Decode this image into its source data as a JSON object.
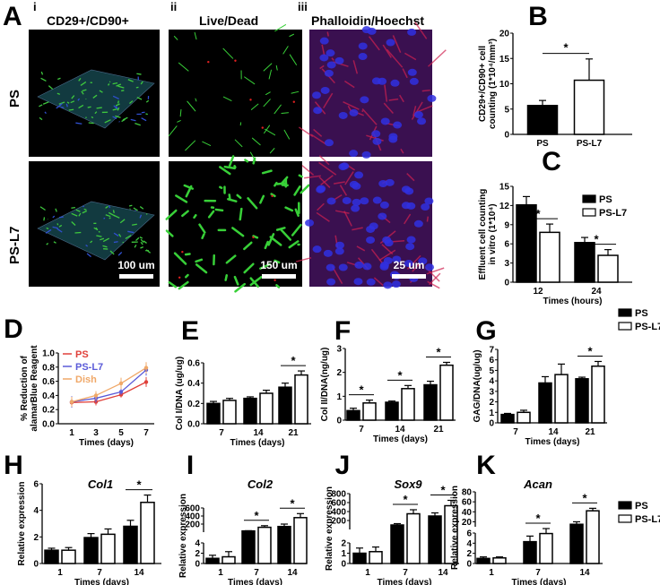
{
  "panel_a": {
    "letter": "A",
    "columns": [
      {
        "numeral": "i",
        "title": "CD29+/CD90+",
        "scale_bar": "100 um"
      },
      {
        "numeral": "ii",
        "title": "Live/Dead",
        "scale_bar": "150 um"
      },
      {
        "numeral": "iii",
        "title": "Phalloidin/Hoechst",
        "scale_bar": "25 um"
      }
    ],
    "rows": [
      "PS",
      "PS-L7"
    ]
  },
  "colors": {
    "PS": "#000000",
    "PS-L7": "#ffffff",
    "line_PS": "#e0403a",
    "line_PS-L7": "#5a5ad8",
    "line_Dish": "#f0a868"
  },
  "chart_data": [
    {
      "id": "B",
      "type": "bar",
      "categories": [
        "PS",
        "PS-L7"
      ],
      "values": [
        5.7,
        10.7
      ],
      "errors": [
        1.0,
        4.2
      ],
      "ylabel": "CD29+/CD90+ cell counting (1*10⁴/mm³)",
      "ylim": [
        0,
        20
      ],
      "yticks": [
        0,
        5,
        10,
        15,
        20
      ],
      "significance": [
        [
          0,
          1
        ]
      ]
    },
    {
      "id": "C",
      "type": "bar",
      "categories": [
        "12",
        "24"
      ],
      "series": [
        {
          "name": "PS",
          "values": [
            12.1,
            6.2
          ],
          "errors": [
            1.3,
            0.8
          ]
        },
        {
          "name": "PS-L7",
          "values": [
            7.8,
            4.2
          ],
          "errors": [
            1.3,
            0.9
          ]
        }
      ],
      "xlabel": "Times (hours)",
      "ylabel": "Effluent cell counting in vitro (1*10⁴)",
      "ylim": [
        0,
        15
      ],
      "yticks": [
        0,
        3,
        6,
        9,
        12,
        15
      ],
      "significance": [
        0,
        1
      ],
      "legend": "top-right"
    },
    {
      "id": "D",
      "type": "line",
      "x": [
        1,
        3,
        5,
        7
      ],
      "series": [
        {
          "name": "PS",
          "values": [
            0.3,
            0.31,
            0.41,
            0.59
          ],
          "errors": [
            0.07,
            0.05,
            0.04,
            0.07
          ]
        },
        {
          "name": "PS-L7",
          "values": [
            0.31,
            0.36,
            0.45,
            0.76
          ],
          "errors": [
            0.08,
            0.06,
            0.04,
            0.08
          ]
        },
        {
          "name": "Dish",
          "values": [
            0.31,
            0.4,
            0.57,
            0.79
          ],
          "errors": [
            0.07,
            0.06,
            0.08,
            0.08
          ]
        }
      ],
      "xlabel": "Times (days)",
      "ylabel": "% Reduction of alamarBlue Reagent",
      "ylim": [
        0,
        1.0
      ],
      "yticks": [
        "0.0",
        "0.2",
        "0.4",
        "0.6",
        "0.8",
        "1.0"
      ],
      "legend": "top-left"
    },
    {
      "id": "E",
      "type": "bar",
      "categories": [
        "7",
        "14",
        "21"
      ],
      "series": [
        {
          "name": "PS",
          "values": [
            0.2,
            0.25,
            0.36
          ],
          "errors": [
            0.02,
            0.015,
            0.04
          ]
        },
        {
          "name": "PS-L7",
          "values": [
            0.23,
            0.3,
            0.48
          ],
          "errors": [
            0.02,
            0.03,
            0.04
          ]
        }
      ],
      "xlabel": "Times (days)",
      "ylabel": "Col I/DNA (ug/ug)",
      "ylim": [
        0,
        0.6
      ],
      "yticks": [
        "0.0",
        "0.2",
        "0.4",
        "0.6"
      ],
      "significance": [
        2
      ]
    },
    {
      "id": "F",
      "type": "bar",
      "categories": [
        "7",
        "14",
        "21"
      ],
      "series": [
        {
          "name": "PS",
          "values": [
            0.4,
            0.75,
            1.48
          ],
          "errors": [
            0.1,
            0.05,
            0.15
          ]
        },
        {
          "name": "PS-L7",
          "values": [
            0.72,
            1.32,
            2.3
          ],
          "errors": [
            0.12,
            0.13,
            0.12
          ]
        }
      ],
      "xlabel": "Times (days)",
      "ylabel": "Col II/DNA(ng/ug)",
      "ylim": [
        0,
        3
      ],
      "yticks": [
        "0",
        "1",
        "2",
        "3"
      ],
      "significance": [
        0,
        1,
        2
      ]
    },
    {
      "id": "G",
      "type": "bar",
      "categories": [
        "7",
        "14",
        "21"
      ],
      "series": [
        {
          "name": "PS",
          "values": [
            0.8,
            3.8,
            4.2
          ],
          "errors": [
            0.1,
            0.6,
            0.15
          ]
        },
        {
          "name": "PS-L7",
          "values": [
            1.0,
            4.6,
            5.4
          ],
          "errors": [
            0.2,
            1.0,
            0.45
          ]
        }
      ],
      "xlabel": "Times (days)",
      "ylabel": "GAG/DNA(ug/ug)",
      "ylim": [
        0,
        7
      ],
      "yticks": [
        "0",
        "1",
        "2",
        "3",
        "4",
        "5",
        "6",
        "7"
      ],
      "significance": [
        2
      ],
      "legend": "right"
    },
    {
      "id": "H",
      "type": "bar",
      "title": "Col1",
      "categories": [
        "1",
        "7",
        "14"
      ],
      "series": [
        {
          "name": "PS",
          "values": [
            1.0,
            1.95,
            2.8
          ],
          "errors": [
            0.15,
            0.3,
            0.45
          ]
        },
        {
          "name": "PS-L7",
          "values": [
            1.0,
            2.2,
            4.6
          ],
          "errors": [
            0.2,
            0.4,
            0.55
          ]
        }
      ],
      "xlabel": "Times (days)",
      "ylabel": "Relative expression",
      "ylim": [
        0,
        6
      ],
      "yticks": [
        "0",
        "2",
        "4",
        "6"
      ],
      "significance": [
        2
      ]
    },
    {
      "id": "I",
      "type": "bar",
      "title": "Col2",
      "categories": [
        "1",
        "7",
        "14"
      ],
      "series": [
        {
          "name": "PS",
          "values": [
            1.0,
            30,
            140
          ],
          "errors": [
            0.6,
            5,
            60
          ]
        },
        {
          "name": "PS-L7",
          "values": [
            1.3,
            120,
            360
          ],
          "errors": [
            1.0,
            40,
            100
          ]
        }
      ],
      "xlabel": "Times (days)",
      "ylabel": "Relative expression",
      "broken_axis": {
        "lower": [
          0,
          4
        ],
        "upper": [
          0,
          600
        ]
      },
      "yticks": [
        "0",
        "2",
        "4",
        "200",
        "400",
        "600"
      ],
      "significance": [
        1,
        2
      ]
    },
    {
      "id": "J",
      "type": "bar",
      "title": "Sox9",
      "categories": [
        "1",
        "7",
        "14"
      ],
      "series": [
        {
          "name": "PS",
          "values": [
            1.0,
            100,
            300
          ],
          "errors": [
            0.5,
            30,
            70
          ]
        },
        {
          "name": "PS-L7",
          "values": [
            1.15,
            350,
            530
          ],
          "errors": [
            0.45,
            90,
            120
          ]
        }
      ],
      "xlabel": "Times (days)",
      "ylabel": "Relative expression",
      "broken_axis": {
        "lower": [
          0,
          2
        ],
        "upper": [
          0,
          800
        ]
      },
      "yticks": [
        "0",
        "1",
        "2",
        "200",
        "400",
        "600",
        "800"
      ],
      "significance": [
        1,
        2
      ]
    },
    {
      "id": "K",
      "type": "bar",
      "title": "Acan",
      "categories": [
        "1",
        "7",
        "14"
      ],
      "series": [
        {
          "name": "PS",
          "values": [
            1.0,
            4.3,
            15
          ],
          "errors": [
            0.3,
            1.1,
            5
          ]
        },
        {
          "name": "PS-L7",
          "values": [
            1.1,
            5.9,
            42
          ],
          "errors": [
            0.2,
            0.5,
            5
          ]
        }
      ],
      "xlabel": "Times (days)",
      "ylabel": "Relative expression",
      "broken_axis": {
        "lower": [
          0,
          6
        ],
        "upper": [
          10,
          80
        ]
      },
      "yticks": [
        "0",
        "2",
        "4",
        "6",
        "20",
        "40",
        "60",
        "80"
      ],
      "significance": [
        1,
        2
      ],
      "legend": "right"
    }
  ]
}
